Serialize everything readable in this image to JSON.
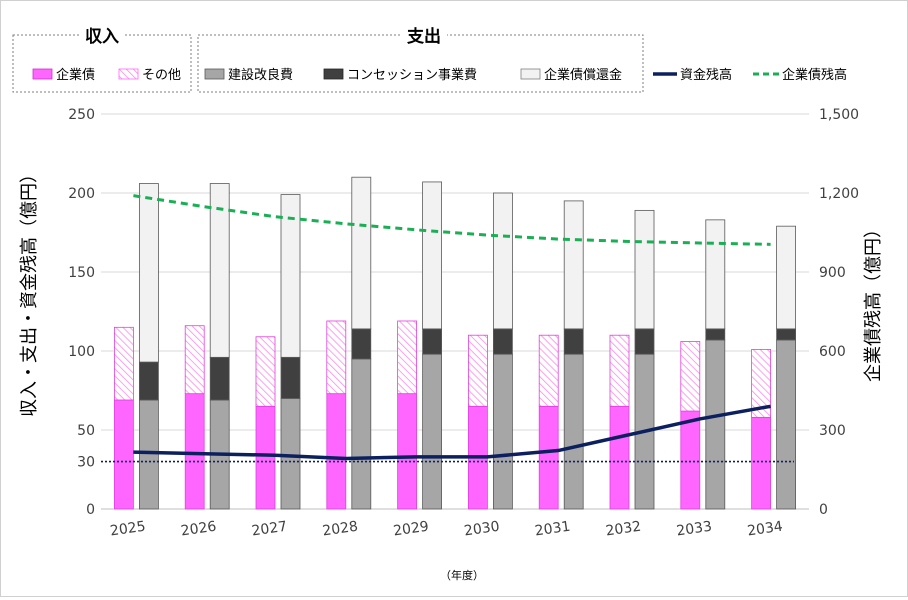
{
  "chart_data": {
    "type": "bar",
    "title": "",
    "xlabel": "（年度）",
    "ylabel_left": "収入・支出・資金残高（億円）",
    "ylabel_right": "企業債残高（億円）",
    "ylim_left": [
      0,
      250
    ],
    "ylim_right": [
      0,
      1500
    ],
    "yticks_left": [
      {
        "value": 0,
        "label": "0"
      },
      {
        "value": 30,
        "label": "30"
      },
      {
        "value": 50,
        "label": "50"
      },
      {
        "value": 100,
        "label": "100"
      },
      {
        "value": 150,
        "label": "150"
      },
      {
        "value": 200,
        "label": "200"
      },
      {
        "value": 250,
        "label": "250"
      }
    ],
    "yticks_right": [
      {
        "value": 0,
        "label": "0"
      },
      {
        "value": 300,
        "label": "300"
      },
      {
        "value": 600,
        "label": "600"
      },
      {
        "value": 900,
        "label": "900"
      },
      {
        "value": 1200,
        "label": "1,200"
      },
      {
        "value": 1500,
        "label": "1,500"
      }
    ],
    "categories": [
      "2025",
      "2026",
      "2027",
      "2028",
      "2029",
      "2030",
      "2031",
      "2032",
      "2033",
      "2034"
    ],
    "legend_groups": {
      "income": "収入",
      "expense": "支出"
    },
    "income_series": [
      {
        "name": "企業債",
        "color": "#ff66ff",
        "values": [
          69,
          73,
          65,
          73,
          73,
          65,
          65,
          65,
          62,
          58
        ]
      },
      {
        "name": "その他",
        "color": "#ff66ff",
        "pattern": "hatch",
        "values": [
          46,
          43,
          44,
          46,
          46,
          45,
          45,
          45,
          44,
          43
        ]
      }
    ],
    "expense_series": [
      {
        "name": "建設改良費",
        "color": "#a6a6a6",
        "values": [
          69,
          69,
          70,
          95,
          98,
          98,
          98,
          98,
          107,
          107
        ]
      },
      {
        "name": "コンセッション事業費",
        "color": "#404040",
        "values": [
          24,
          27,
          26,
          19,
          16,
          16,
          16,
          16,
          7,
          7
        ]
      },
      {
        "name": "企業債償還金",
        "color": "#f2f2f2",
        "values": [
          113,
          110,
          103,
          96,
          93,
          86,
          81,
          75,
          69,
          65
        ]
      }
    ],
    "line_series": [
      {
        "name": "資金残高",
        "axis": "left",
        "color": "#0c2060",
        "style": "solid",
        "values": [
          36,
          35,
          34,
          32,
          33,
          33,
          37,
          47,
          57,
          65
        ]
      },
      {
        "name": "企業債残高",
        "axis": "right",
        "color": "#1aaf54",
        "style": "dashed",
        "values": [
          1190,
          1148,
          1110,
          1083,
          1060,
          1040,
          1025,
          1016,
          1010,
          1005
        ]
      }
    ],
    "reference_line": {
      "value": 30,
      "axis": "left",
      "color": "#0c2060",
      "style": "dotted"
    }
  }
}
